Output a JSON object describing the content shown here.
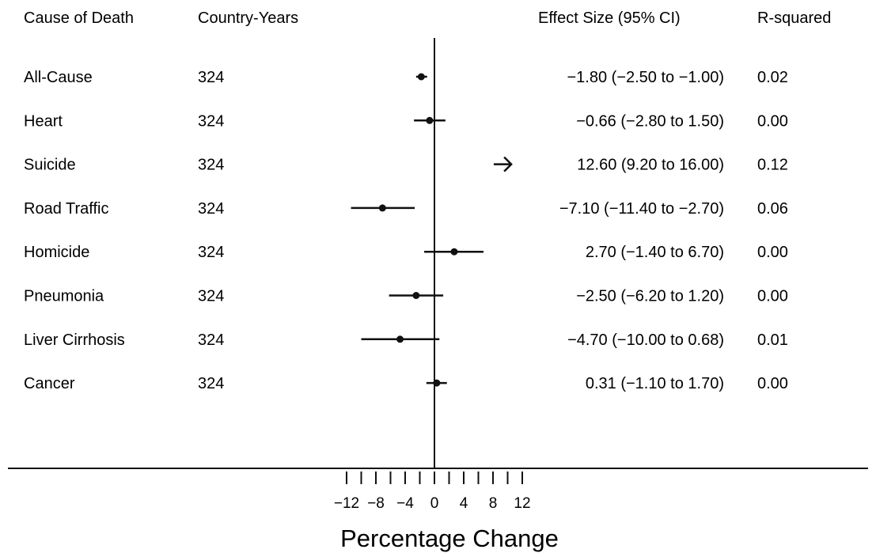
{
  "chart_data": {
    "type": "forest",
    "columns": {
      "cause": "Cause of Death",
      "n": "Country-Years",
      "effect": "Effect Size (95% CI)",
      "r2": "R-squared"
    },
    "rows": [
      {
        "cause": "All-Cause",
        "n": "324",
        "estimate": -1.8,
        "ci_low": -2.5,
        "ci_high": -1.0,
        "effect_text": "−1.80 (−2.50 to −1.00)",
        "r2": "0.02"
      },
      {
        "cause": "Heart",
        "n": "324",
        "estimate": -0.66,
        "ci_low": -2.8,
        "ci_high": 1.5,
        "effect_text": "−0.66 (−2.80 to 1.50)",
        "r2": "0.00"
      },
      {
        "cause": "Suicide",
        "n": "324",
        "estimate": 12.6,
        "ci_low": 9.2,
        "ci_high": 16.0,
        "effect_text": "12.60 (9.20 to 16.00)",
        "r2": "0.12"
      },
      {
        "cause": "Road Traffic",
        "n": "324",
        "estimate": -7.1,
        "ci_low": -11.4,
        "ci_high": -2.7,
        "effect_text": "−7.10 (−11.40 to −2.70)",
        "r2": "0.06"
      },
      {
        "cause": "Homicide",
        "n": "324",
        "estimate": 2.7,
        "ci_low": -1.4,
        "ci_high": 6.7,
        "effect_text": "2.70 (−1.40 to 6.70)",
        "r2": "0.00"
      },
      {
        "cause": "Pneumonia",
        "n": "324",
        "estimate": -2.5,
        "ci_low": -6.2,
        "ci_high": 1.2,
        "effect_text": "−2.50 (−6.20 to 1.20)",
        "r2": "0.00"
      },
      {
        "cause": "Liver Cirrhosis",
        "n": "324",
        "estimate": -4.7,
        "ci_low": -10.0,
        "ci_high": 0.68,
        "effect_text": "−4.70 (−10.00 to 0.68)",
        "r2": "0.01"
      },
      {
        "cause": "Cancer",
        "n": "324",
        "estimate": 0.31,
        "ci_low": -1.1,
        "ci_high": 1.7,
        "effect_text": "0.31 (−1.10 to 1.70)",
        "r2": "0.00"
      }
    ],
    "x_axis": {
      "label": "Percentage Change",
      "range": [
        -12,
        12
      ],
      "ticks": [
        -12,
        -10,
        -8,
        -6,
        -4,
        -2,
        0,
        2,
        4,
        6,
        8,
        10,
        12
      ],
      "tick_labels": [
        {
          "value": -12,
          "text": "−12"
        },
        {
          "value": -8,
          "text": "−8"
        },
        {
          "value": -4,
          "text": "−4"
        },
        {
          "value": 0,
          "text": "0"
        },
        {
          "value": 4,
          "text": "4"
        },
        {
          "value": 8,
          "text": "8"
        },
        {
          "value": 12,
          "text": "12"
        }
      ]
    },
    "reference_line": 0,
    "truncated_arrow_rows": [
      "Suicide"
    ],
    "grid": false,
    "legend": "none",
    "colors": {
      "ink": "#111111",
      "background": "#ffffff"
    }
  }
}
